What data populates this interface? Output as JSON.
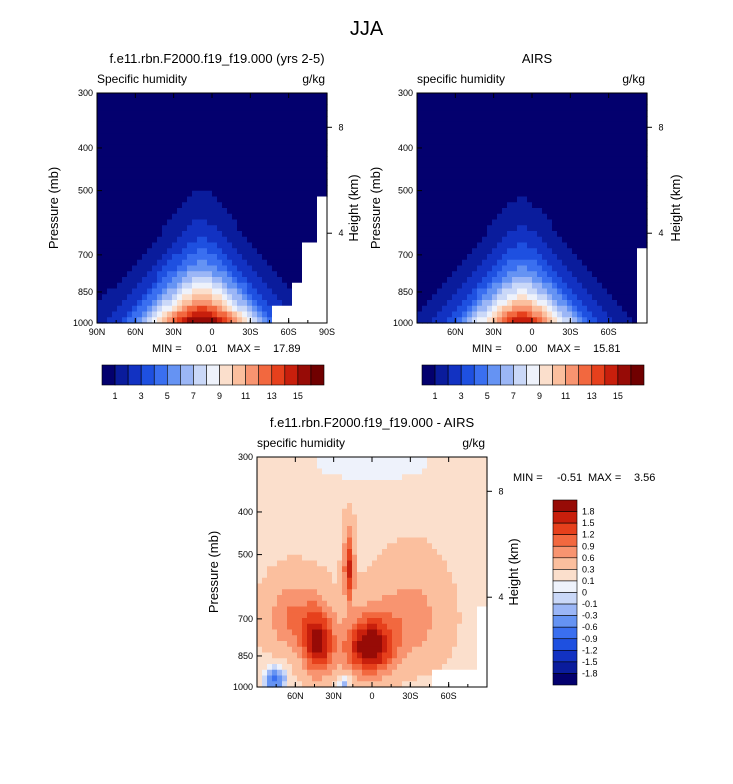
{
  "figure_title": "JJA",
  "chart_data": [
    {
      "type": "heatmap",
      "title": "f.e11.rbn.F2000.f19_f19.000 (yrs 2-5)",
      "left_label": "Specific humidity",
      "right_label": "g/kg",
      "ylabel": "Pressure (mb)",
      "ylabel_right": "Height (km)",
      "x_ticks": [
        "90N",
        "60N",
        "30N",
        "0",
        "30S",
        "60S",
        "90S"
      ],
      "x_ticks_lat": [
        90,
        60,
        30,
        0,
        -30,
        -60,
        -90
      ],
      "xlim": [
        90,
        -90
      ],
      "y_ticks": [
        "300",
        "400",
        "500",
        "700",
        "850",
        "1000"
      ],
      "y_ticks_value": [
        300,
        400,
        500,
        700,
        850,
        1000
      ],
      "ylim": [
        1000,
        300
      ],
      "y_scale": "log",
      "height_ticks": [
        "8",
        "4"
      ],
      "height_ticks_pressure": [
        359,
        625
      ],
      "min_label": "MIN =",
      "min_value": "0.01",
      "max_label": "MAX =",
      "max_value": "17.89",
      "colorbar_levels": [
        1,
        2,
        3,
        4,
        5,
        6,
        7,
        8,
        9,
        10,
        11,
        12,
        13,
        14,
        15
      ],
      "colorbar_labels": [
        "1",
        "3",
        "5",
        "7",
        "9",
        "11",
        "13",
        "15"
      ],
      "colorbar_orientation": "horizontal",
      "colorbar_colors": [
        "#03006e",
        "#0a1c9c",
        "#1232c2",
        "#1e50e0",
        "#3a6ff0",
        "#6593f3",
        "#9bb6f6",
        "#cad8f8",
        "#eef2fb",
        "#fbdfcc",
        "#fbbf9e",
        "#f89470",
        "#f2683f",
        "#e6401c",
        "#c81f0c",
        "#970b06",
        "#700000"
      ],
      "field": {
        "peak_lat": 8,
        "sfc_max": 17.89,
        "decay_lat": 52,
        "top_ratio": 0.02,
        "missing_regions": [
          {
            "lat": [
              -48,
              -90
            ],
            "p_min": 920
          },
          {
            "lat": [
              -63,
              -90
            ],
            "p_min": 800
          },
          {
            "lat": [
              -72,
              -90
            ],
            "p_min": 660
          },
          {
            "lat": [
              -82,
              -90
            ],
            "p_min": 520
          }
        ]
      }
    },
    {
      "type": "heatmap",
      "title": "AIRS",
      "left_label": "specific humidity",
      "right_label": "g/kg",
      "ylabel": "Pressure (mb)",
      "ylabel_right": "Height (km)",
      "x_ticks": [
        "60N",
        "30N",
        "0",
        "30S",
        "60S"
      ],
      "x_ticks_lat": [
        60,
        30,
        0,
        -30,
        -60
      ],
      "xlim": [
        90,
        -90
      ],
      "y_ticks": [
        "300",
        "400",
        "500",
        "700",
        "850",
        "1000"
      ],
      "y_ticks_value": [
        300,
        400,
        500,
        700,
        850,
        1000
      ],
      "ylim": [
        1000,
        300
      ],
      "y_scale": "log",
      "height_ticks": [
        "8",
        "4"
      ],
      "height_ticks_pressure": [
        359,
        625
      ],
      "min_label": "MIN =",
      "min_value": "0.00",
      "max_label": "MAX =",
      "max_value": "15.81",
      "colorbar_levels": [
        1,
        2,
        3,
        4,
        5,
        6,
        7,
        8,
        9,
        10,
        11,
        12,
        13,
        14,
        15
      ],
      "colorbar_labels": [
        "1",
        "3",
        "5",
        "7",
        "9",
        "11",
        "13",
        "15"
      ],
      "colorbar_orientation": "horizontal",
      "colorbar_colors": [
        "#03006e",
        "#0a1c9c",
        "#1232c2",
        "#1e50e0",
        "#3a6ff0",
        "#6593f3",
        "#9bb6f6",
        "#cad8f8",
        "#eef2fb",
        "#fbdfcc",
        "#fbbf9e",
        "#f89470",
        "#f2683f",
        "#e6401c",
        "#c81f0c",
        "#970b06",
        "#700000"
      ],
      "field": {
        "peak_lat": 8,
        "sfc_max": 15.81,
        "decay_lat": 47,
        "top_ratio": 0.015,
        "missing_regions": [
          {
            "lat": [
              -82,
              -90
            ],
            "p_min": 680
          }
        ]
      }
    },
    {
      "type": "heatmap",
      "title": "f.e11.rbn.F2000.f19_f19.000 - AIRS",
      "left_label": "specific humidity",
      "right_label": "g/kg",
      "ylabel": "Pressure (mb)",
      "ylabel_right": "Height (km)",
      "x_ticks": [
        "60N",
        "30N",
        "0",
        "30S",
        "60S"
      ],
      "x_ticks_lat": [
        60,
        30,
        0,
        -30,
        -60
      ],
      "xlim": [
        90,
        -90
      ],
      "y_ticks": [
        "300",
        "400",
        "500",
        "700",
        "850",
        "1000"
      ],
      "y_ticks_value": [
        300,
        400,
        500,
        700,
        850,
        1000
      ],
      "ylim": [
        1000,
        300
      ],
      "y_scale": "log",
      "height_ticks": [
        "8",
        "4"
      ],
      "height_ticks_pressure": [
        359,
        625
      ],
      "min_label": "MIN =",
      "min_value": "-0.51",
      "max_label": "MAX =",
      "max_value": "3.56",
      "colorbar_levels": [
        -1.8,
        -1.5,
        -1.2,
        -0.9,
        -0.6,
        -0.3,
        -0.1,
        0,
        0.1,
        0.3,
        0.6,
        0.9,
        1.2,
        1.5,
        1.8
      ],
      "colorbar_labels": [
        "1.8",
        "1.5",
        "1.2",
        "0.9",
        "0.6",
        "0.3",
        "0.1",
        "0",
        "-0.1",
        "-0.3",
        "-0.6",
        "-0.9",
        "-1.2",
        "-1.5",
        "-1.8"
      ],
      "colorbar_orientation": "vertical",
      "colorbar_colors": [
        "#03006e",
        "#0a1c9c",
        "#1232c2",
        "#1e50e0",
        "#3a6ff0",
        "#6593f3",
        "#9bb6f6",
        "#cad8f8",
        "#eef2fb",
        "#fbdfcc",
        "#fbbf9e",
        "#f89470",
        "#f2683f",
        "#e6401c",
        "#c81f0c",
        "#970b06"
      ],
      "field": {
        "missing_regions": [
          {
            "lat": [
              -48,
              -90
            ],
            "p_min": 920
          },
          {
            "lat": [
              -82,
              -90
            ],
            "p_min": 660
          }
        ]
      }
    }
  ]
}
